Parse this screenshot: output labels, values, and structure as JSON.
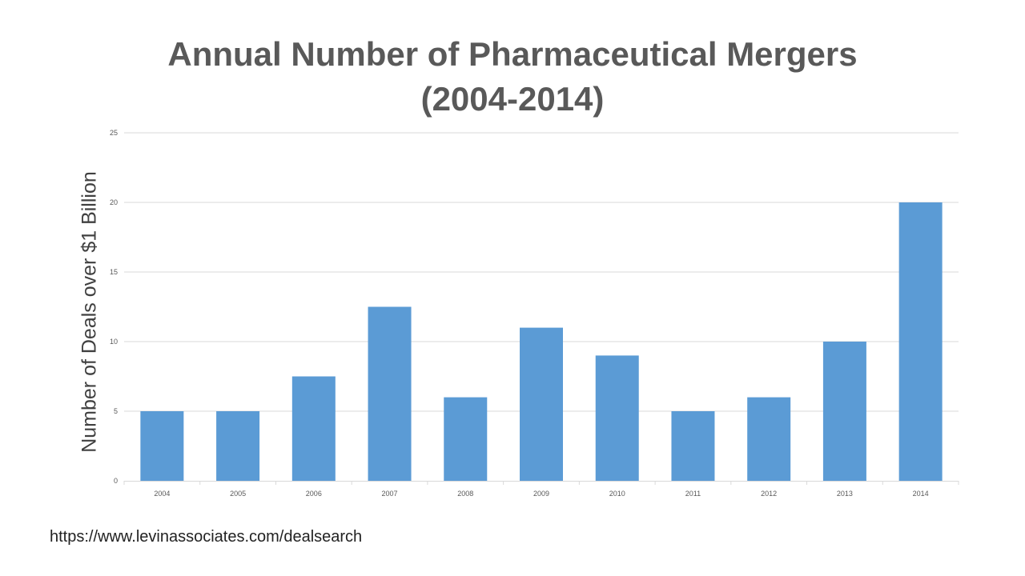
{
  "chart_data": {
    "type": "bar",
    "title_line1": "Annual Number of Pharmaceutical Mergers",
    "title_line2": "(2004-2014)",
    "xlabel": "",
    "ylabel": "Number of Deals over $1 Billion",
    "categories": [
      "2004",
      "2005",
      "2006",
      "2007",
      "2008",
      "2009",
      "2010",
      "2011",
      "2012",
      "2013",
      "2014"
    ],
    "values": [
      5,
      5,
      7.5,
      12.5,
      6,
      11,
      9,
      5,
      6,
      10,
      20
    ],
    "ylim": [
      0,
      25
    ],
    "yticks": [
      0,
      5,
      10,
      15,
      20,
      25
    ],
    "grid": true,
    "legend": "none",
    "bar_color": "#5b9bd5",
    "grid_color": "#d9d9d9"
  },
  "footer": {
    "source_url": "https://www.levinassociates.com/dealsearch"
  }
}
